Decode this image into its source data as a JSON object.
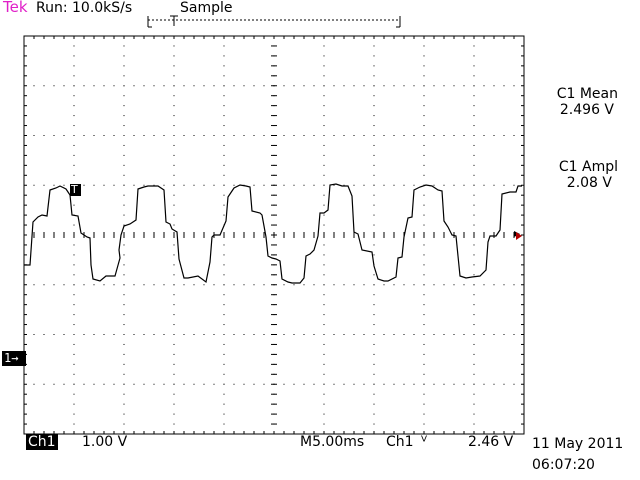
{
  "header": {
    "brand": "Tek",
    "run_status": "Run: 10.0kS/s",
    "acq_mode": "Sample"
  },
  "measurements": [
    {
      "label": "C1 Mean",
      "value": "2.496 V"
    },
    {
      "label": "C1 Ampl",
      "value": "2.08 V"
    }
  ],
  "markers": {
    "trigger": "T",
    "channel_ground": "1→"
  },
  "footer": {
    "channel": "Ch1",
    "volts_div": "1.00 V",
    "timebase": "M5.00ms",
    "trig_source": "Ch1",
    "trig_slope": "ⱽ",
    "trig_level": "2.46 V",
    "date": "11 May 2011",
    "time": "06:07:20"
  },
  "colors": {
    "brand": "#e020c8",
    "grid": "#000000",
    "trace": "#000000",
    "background": "#ffffff"
  },
  "icons": {
    "trigger_marker": "trigger-flag-icon",
    "ground_marker": "channel-1-ground-arrow-icon",
    "trigger_level_marker": "triangle-left-icon",
    "slope_marker": "falling-edge-icon"
  }
}
